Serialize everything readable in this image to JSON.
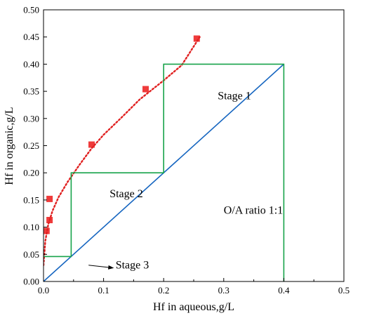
{
  "chart_data": {
    "type": "scatter",
    "title": "",
    "xlabel": "Hf in aqueous,g/L",
    "ylabel": "Hf in organic,g/L",
    "xlim": [
      0,
      0.5
    ],
    "ylim": [
      0,
      0.5
    ],
    "x_ticks": [
      "0.0",
      "0.1",
      "0.2",
      "0.3",
      "0.4",
      "0.5"
    ],
    "y_ticks": [
      "0.00",
      "0.05",
      "0.10",
      "0.15",
      "0.20",
      "0.25",
      "0.30",
      "0.35",
      "0.40",
      "0.45",
      "0.50"
    ],
    "grid": false,
    "series": [
      {
        "kind": "scatter",
        "marker": "square",
        "color": "#ef3b3b",
        "points": [
          [
            0.005,
            0.093
          ],
          [
            0.01,
            0.113
          ],
          [
            0.01,
            0.152
          ],
          [
            0.08,
            0.252
          ],
          [
            0.17,
            0.354
          ],
          [
            0.255,
            0.447
          ]
        ]
      },
      {
        "kind": "fit-curve",
        "style": "dotted",
        "color": "#e02020",
        "points": [
          [
            0.0,
            0.03
          ],
          [
            0.003,
            0.075
          ],
          [
            0.008,
            0.105
          ],
          [
            0.015,
            0.13
          ],
          [
            0.025,
            0.155
          ],
          [
            0.04,
            0.183
          ],
          [
            0.06,
            0.215
          ],
          [
            0.08,
            0.245
          ],
          [
            0.1,
            0.27
          ],
          [
            0.13,
            0.302
          ],
          [
            0.16,
            0.335
          ],
          [
            0.2,
            0.37
          ],
          [
            0.23,
            0.398
          ],
          [
            0.26,
            0.45
          ]
        ]
      },
      {
        "kind": "operating-line",
        "color": "#1565c0",
        "points": [
          [
            0.0,
            0.0
          ],
          [
            0.4,
            0.4
          ]
        ]
      },
      {
        "kind": "stage-steps",
        "color": "#17a34a",
        "points": [
          [
            0.4,
            0.0
          ],
          [
            0.4,
            0.4
          ],
          [
            0.2,
            0.4
          ],
          [
            0.2,
            0.2
          ],
          [
            0.046,
            0.2
          ],
          [
            0.046,
            0.046
          ],
          [
            0.0,
            0.046
          ]
        ]
      }
    ],
    "annotations": [
      {
        "text": "Stage 1",
        "x": 0.29,
        "y": 0.335
      },
      {
        "text": "Stage 2",
        "x": 0.11,
        "y": 0.155
      },
      {
        "text": "Stage 3",
        "x": 0.12,
        "y": 0.024
      },
      {
        "text": "O/A ratio 1:1",
        "x": 0.3,
        "y": 0.125
      }
    ],
    "arrow": {
      "from": [
        0.075,
        0.03
      ],
      "to": [
        0.123,
        0.025
      ]
    }
  }
}
